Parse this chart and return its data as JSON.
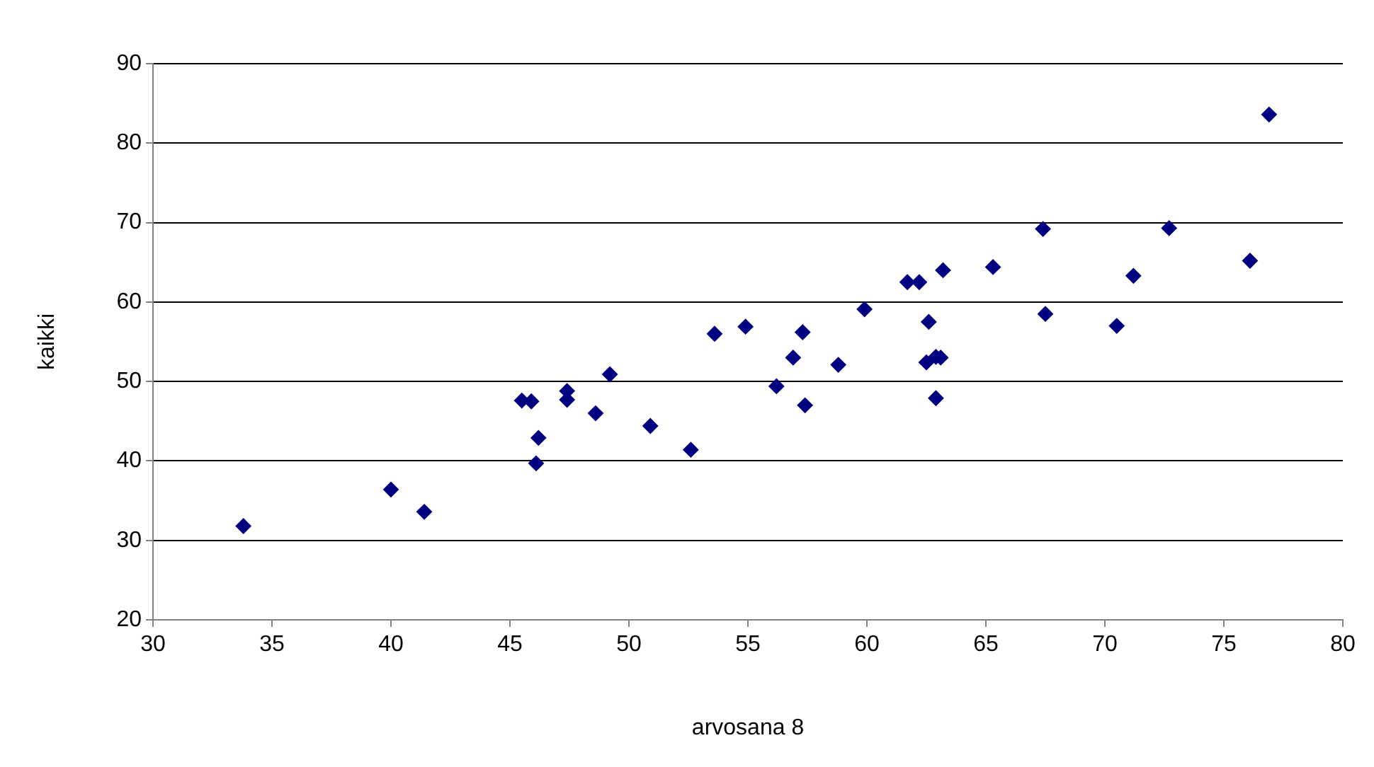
{
  "chart_data": {
    "type": "scatter",
    "xlabel": "arvosana 8",
    "ylabel": "kaikki",
    "x": [
      33.8,
      40.0,
      41.4,
      45.5,
      45.9,
      46.1,
      46.2,
      47.4,
      47.4,
      48.6,
      49.2,
      50.9,
      52.6,
      53.6,
      54.9,
      56.2,
      56.9,
      57.3,
      57.4,
      58.8,
      59.9,
      61.7,
      62.2,
      62.6,
      62.5,
      62.9,
      62.9,
      63.1,
      63.2,
      65.3,
      67.4,
      67.5,
      70.5,
      71.2,
      72.7,
      76.1,
      76.9
    ],
    "series": [
      {
        "color": "#000080",
        "values": [
          31.8,
          36.4,
          33.6,
          47.6,
          47.5,
          39.7,
          42.9,
          48.8,
          47.7,
          46.0,
          50.9,
          44.4,
          41.4,
          56.0,
          56.9,
          49.4,
          53.0,
          56.2,
          47.0,
          52.1,
          59.1,
          62.5,
          62.5,
          57.5,
          52.4,
          53.1,
          47.9,
          53.0,
          64.0,
          64.4,
          69.2,
          58.5,
          57.0,
          63.3,
          69.3,
          65.2,
          83.6
        ]
      }
    ],
    "xlim": [
      30,
      80
    ],
    "xticks": [
      30,
      35,
      40,
      45,
      50,
      55,
      60,
      65,
      70,
      75,
      80
    ],
    "ylim": [
      20,
      90
    ],
    "yticks": [
      20,
      30,
      40,
      50,
      60,
      70,
      80,
      90
    ],
    "grid": "y",
    "marker": "diamond",
    "legend": false
  }
}
